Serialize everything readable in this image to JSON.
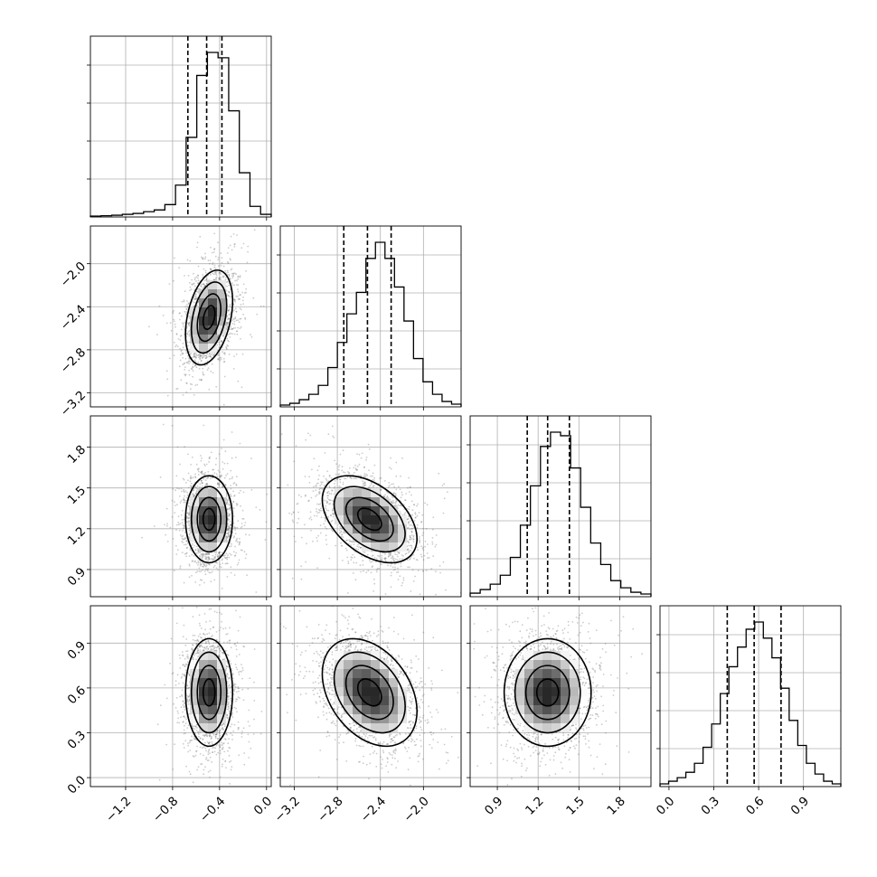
{
  "chart_data": {
    "type": "corner",
    "n_params": 4,
    "grid": true,
    "params": [
      {
        "range": [
          -1.5,
          0.04
        ],
        "ticks": [
          -1.2,
          -0.8,
          -0.4,
          0.0
        ],
        "tick_labels": [
          "−1.2",
          "−0.8",
          "−0.4",
          "0.0"
        ],
        "quantiles": [
          -0.67,
          -0.51,
          -0.38
        ],
        "mode": -0.47,
        "hist": [
          0.5,
          0.7,
          1,
          1.5,
          2,
          3,
          4,
          7,
          18,
          45,
          80,
          93,
          90,
          60,
          25,
          6,
          1.5
        ]
      },
      {
        "range": [
          -3.33,
          -1.65
        ],
        "ticks": [
          -3.2,
          -2.8,
          -2.4,
          -2.0
        ],
        "tick_labels": [
          "−3.2",
          "−2.8",
          "−2.4",
          "−2.0"
        ],
        "quantiles": [
          -2.74,
          -2.52,
          -2.3
        ],
        "mode": -2.52,
        "hist": [
          1,
          2,
          4,
          7,
          12,
          22,
          36,
          52,
          64,
          83,
          92,
          83,
          67,
          48,
          27,
          14,
          7,
          3,
          1.5
        ]
      },
      {
        "range": [
          0.7,
          2.03
        ],
        "ticks": [
          0.9,
          1.2,
          1.5,
          1.8
        ],
        "tick_labels": [
          "0.9",
          "1.2",
          "1.5",
          "1.8"
        ],
        "quantiles": [
          1.12,
          1.27,
          1.43
        ],
        "mode": 1.27,
        "hist": [
          2,
          4,
          7,
          12,
          22,
          40,
          62,
          84,
          92,
          90,
          72,
          50,
          30,
          18,
          9,
          5,
          2.5,
          1.5
        ]
      },
      {
        "range": [
          -0.06,
          1.15
        ],
        "ticks": [
          0.0,
          0.3,
          0.6,
          0.9
        ],
        "tick_labels": [
          "0.0",
          "0.3",
          "0.6",
          "0.9"
        ],
        "quantiles": [
          0.39,
          0.57,
          0.75
        ],
        "mode": 0.57,
        "hist": [
          1.5,
          3,
          5,
          8,
          13,
          22,
          35,
          52,
          67,
          78,
          88,
          92,
          83,
          72,
          55,
          37,
          23,
          13,
          7,
          3,
          1.5
        ]
      }
    ],
    "pairs": [
      {
        "row": 1,
        "col": 0,
        "center": [
          -0.49,
          -2.5
        ],
        "sigma": [
          0.1,
          0.22
        ],
        "rho": 0.35
      },
      {
        "row": 2,
        "col": 0,
        "center": [
          -0.49,
          1.27
        ],
        "sigma": [
          0.1,
          0.16
        ],
        "rho": 0.0
      },
      {
        "row": 2,
        "col": 1,
        "center": [
          -2.5,
          1.27
        ],
        "sigma": [
          0.22,
          0.16
        ],
        "rho": -0.45
      },
      {
        "row": 3,
        "col": 0,
        "center": [
          -0.49,
          0.57
        ],
        "sigma": [
          0.1,
          0.18
        ],
        "rho": 0.0
      },
      {
        "row": 3,
        "col": 1,
        "center": [
          -2.5,
          0.57
        ],
        "sigma": [
          0.22,
          0.18
        ],
        "rho": -0.35
      },
      {
        "row": 3,
        "col": 2,
        "center": [
          1.27,
          0.57
        ],
        "sigma": [
          0.16,
          0.18
        ],
        "rho": 0.0
      }
    ]
  }
}
